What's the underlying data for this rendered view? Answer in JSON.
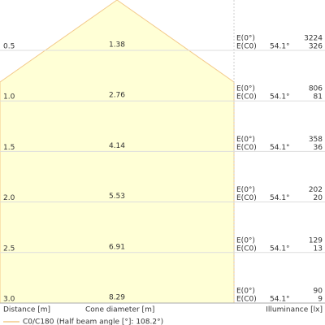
{
  "labels": {
    "e0": "E(0°)",
    "ec0": "E(C0)"
  },
  "rows": [
    {
      "distance": "0.5",
      "diameter": "1.38",
      "angle": "54.1°",
      "e0": "3224",
      "ec0": "326"
    },
    {
      "distance": "1.0",
      "diameter": "2.76",
      "angle": "54.1°",
      "e0": "806",
      "ec0": "81"
    },
    {
      "distance": "1.5",
      "diameter": "4.14",
      "angle": "54.1°",
      "e0": "358",
      "ec0": "36"
    },
    {
      "distance": "2.0",
      "diameter": "5.53",
      "angle": "54.1°",
      "e0": "202",
      "ec0": "20"
    },
    {
      "distance": "2.5",
      "diameter": "6.91",
      "angle": "54.1°",
      "e0": "129",
      "ec0": "13"
    },
    {
      "distance": "3.0",
      "diameter": "8.29",
      "angle": "54.1°",
      "e0": "90",
      "ec0": "9"
    }
  ],
  "footer": {
    "distance": "Distance [m]",
    "diameter": "Cone diameter [m]",
    "illuminance": "Illuminance [lx]"
  },
  "legend": "C0/C180 (Half beam angle [°]: 108.2°)"
}
